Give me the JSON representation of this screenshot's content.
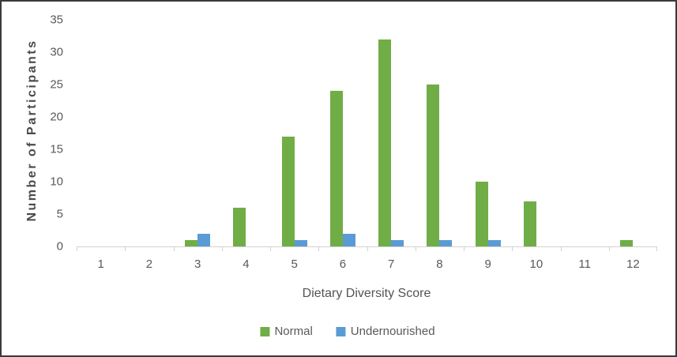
{
  "chart_data": {
    "type": "bar",
    "title": "",
    "xlabel": "Dietary Diversity Score",
    "ylabel": "Number of Participants",
    "categories": [
      "1",
      "2",
      "3",
      "4",
      "5",
      "6",
      "7",
      "8",
      "9",
      "10",
      "11",
      "12"
    ],
    "series": [
      {
        "name": "Normal",
        "color": "#70AD47",
        "values": [
          0,
          0,
          1,
          6,
          17,
          24,
          32,
          25,
          10,
          7,
          0,
          1
        ]
      },
      {
        "name": "Undernourished",
        "color": "#5B9BD5",
        "values": [
          0,
          0,
          2,
          0,
          1,
          2,
          1,
          1,
          1,
          0,
          0,
          0
        ]
      }
    ],
    "ylim": [
      0,
      35
    ],
    "ytick_step": 5,
    "yticks": [
      0,
      5,
      10,
      15,
      20,
      25,
      30,
      35
    ],
    "grid": false,
    "legend_position": "bottom",
    "axis_line_color": "#d2d2d2",
    "text_color": "#595959"
  }
}
